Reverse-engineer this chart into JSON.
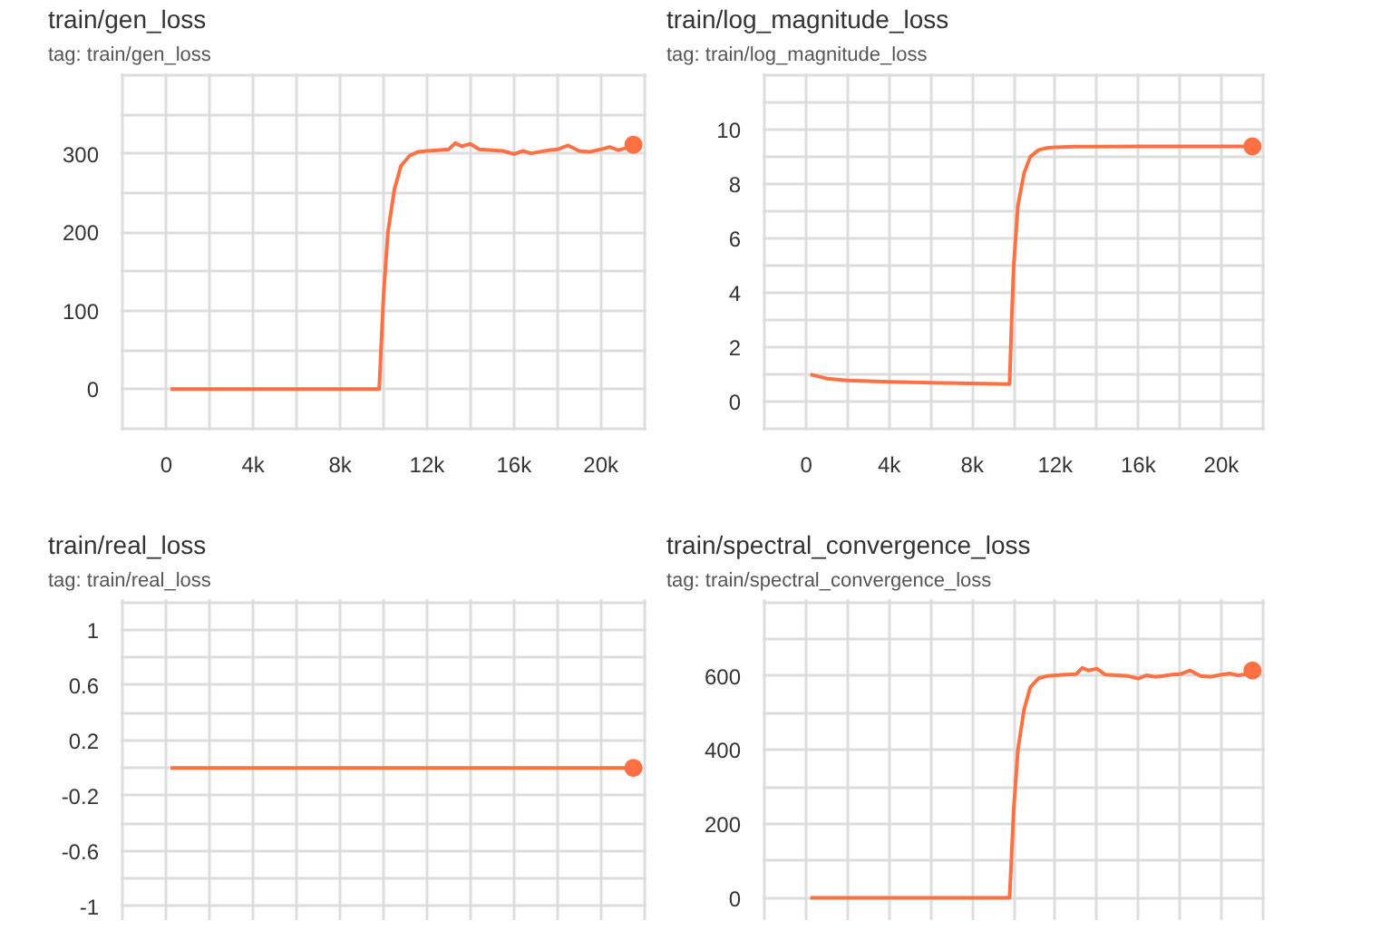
{
  "chart_data": [
    {
      "type": "line",
      "title": "train/gen_loss",
      "subtitle": "tag: train/gen_loss",
      "xlim": [
        -2100,
        22100
      ],
      "xticks": [
        {
          "value": -2000,
          "label": null
        },
        0,
        {
          "value": 2000,
          "label": null
        },
        {
          "value": 4000,
          "label": "4k"
        },
        {
          "value": 6000,
          "label": null
        },
        {
          "value": 8000,
          "label": "8k"
        },
        {
          "value": 10000,
          "label": null
        },
        {
          "value": 12000,
          "label": "12k"
        },
        {
          "value": 14000,
          "label": null
        },
        {
          "value": 16000,
          "label": "16k"
        },
        {
          "value": 18000,
          "label": null
        },
        {
          "value": 20000,
          "label": "20k"
        },
        {
          "value": 22000,
          "label": null
        }
      ],
      "ylim": [
        -53,
        403
      ],
      "yticks": [
        {
          "value": -50,
          "label": null
        },
        0,
        {
          "value": 50,
          "label": null
        },
        100,
        {
          "value": 150,
          "label": null
        },
        200,
        {
          "value": 250,
          "label": null
        },
        300,
        {
          "value": 350,
          "label": null
        },
        {
          "value": 400,
          "label": null
        }
      ],
      "grid": true,
      "series": [
        {
          "color": "#ff7043",
          "x": [
            200,
            2000,
            4000,
            6000,
            8000,
            9800,
            10000,
            10200,
            10500,
            10800,
            11200,
            11600,
            12000,
            12500,
            13000,
            13300,
            13600,
            14000,
            14400,
            15000,
            15500,
            16000,
            16400,
            16800,
            17200,
            17600,
            18000,
            18500,
            19000,
            19500,
            20000,
            20400,
            20800,
            21200,
            21500
          ],
          "values": [
            0,
            0,
            0,
            0,
            0,
            0,
            120,
            200,
            255,
            285,
            298,
            303,
            304,
            305,
            306,
            314,
            310,
            313,
            306,
            305,
            304,
            300,
            304,
            301,
            303,
            305,
            306,
            311,
            304,
            303,
            306,
            309,
            305,
            308,
            312
          ]
        },
        {
          "type": "scatter",
          "color": "#ff7043",
          "x": [
            21500
          ],
          "values": [
            312
          ]
        }
      ]
    },
    {
      "type": "line",
      "title": "train/log_magnitude_loss",
      "subtitle": "tag: train/log_magnitude_loss",
      "xlim": [
        -2100,
        22100
      ],
      "xticks": [
        {
          "value": -2000,
          "label": null
        },
        0,
        {
          "value": 2000,
          "label": null
        },
        {
          "value": 4000,
          "label": "4k"
        },
        {
          "value": 6000,
          "label": null
        },
        {
          "value": 8000,
          "label": "8k"
        },
        {
          "value": 10000,
          "label": null
        },
        {
          "value": 12000,
          "label": "12k"
        },
        {
          "value": 14000,
          "label": null
        },
        {
          "value": 16000,
          "label": "16k"
        },
        {
          "value": 18000,
          "label": null
        },
        {
          "value": 20000,
          "label": "20k"
        },
        {
          "value": 22000,
          "label": null
        }
      ],
      "ylim": [
        -1.06,
        12.06
      ],
      "yticks": [
        {
          "value": -1,
          "label": null
        },
        0,
        {
          "value": 1,
          "label": null
        },
        2,
        {
          "value": 3,
          "label": null
        },
        4,
        {
          "value": 5,
          "label": null
        },
        6,
        {
          "value": 7,
          "label": null
        },
        8,
        {
          "value": 9,
          "label": null
        },
        10,
        {
          "value": 11,
          "label": null
        },
        {
          "value": 12,
          "label": null
        }
      ],
      "grid": true,
      "series": [
        {
          "color": "#ff7043",
          "x": [
            200,
            1000,
            2000,
            4000,
            6000,
            8000,
            9800,
            9900,
            10000,
            10200,
            10500,
            10800,
            11200,
            11600,
            12000,
            13000,
            14000,
            16000,
            18000,
            20000,
            21500
          ],
          "values": [
            1.0,
            0.85,
            0.78,
            0.73,
            0.7,
            0.67,
            0.65,
            3.0,
            5.0,
            7.2,
            8.4,
            9.0,
            9.25,
            9.32,
            9.35,
            9.37,
            9.37,
            9.38,
            9.38,
            9.38,
            9.38
          ]
        },
        {
          "type": "scatter",
          "color": "#ff7043",
          "x": [
            21500
          ],
          "values": [
            9.38
          ]
        }
      ]
    },
    {
      "type": "line",
      "title": "train/real_loss",
      "subtitle": "tag: train/real_loss",
      "tick_labels": "y",
      "xlim": [
        -2100,
        22100
      ],
      "xticks": [
        {
          "value": -2000,
          "label": null
        },
        {
          "value": 0,
          "label": null
        },
        {
          "value": 2000,
          "label": null
        },
        {
          "value": 4000,
          "label": null
        },
        {
          "value": 6000,
          "label": null
        },
        {
          "value": 8000,
          "label": null
        },
        {
          "value": 10000,
          "label": null
        },
        {
          "value": 12000,
          "label": null
        },
        {
          "value": 14000,
          "label": null
        },
        {
          "value": 16000,
          "label": null
        },
        {
          "value": 18000,
          "label": null
        },
        {
          "value": 20000,
          "label": null
        },
        {
          "value": 22000,
          "label": null
        }
      ],
      "ylim": [
        -1.1,
        1.22
      ],
      "yticks": [
        1,
        {
          "value": 0.8,
          "label": null
        },
        0.6,
        {
          "value": 0.4,
          "label": null
        },
        0.2,
        {
          "value": 0,
          "label": null
        },
        -0.2,
        {
          "value": -0.4,
          "label": null
        },
        -0.6,
        {
          "value": -0.8,
          "label": null
        },
        -1,
        {
          "value": 1.2,
          "label": null
        }
      ],
      "grid": true,
      "series": [
        {
          "color": "#ff7043",
          "x": [
            200,
            21500
          ],
          "values": [
            0,
            0
          ]
        },
        {
          "type": "scatter",
          "color": "#ff7043",
          "x": [
            21500
          ],
          "values": [
            0
          ]
        }
      ]
    },
    {
      "type": "line",
      "title": "train/spectral_convergence_loss",
      "subtitle": "tag: train/spectral_convergence_loss",
      "tick_labels": "y",
      "xlim": [
        -2100,
        22100
      ],
      "xticks": [
        {
          "value": -2000,
          "label": null
        },
        {
          "value": 0,
          "label": null
        },
        {
          "value": 2000,
          "label": null
        },
        {
          "value": 4000,
          "label": null
        },
        {
          "value": 6000,
          "label": null
        },
        {
          "value": 8000,
          "label": null
        },
        {
          "value": 10000,
          "label": null
        },
        {
          "value": 12000,
          "label": null
        },
        {
          "value": 14000,
          "label": null
        },
        {
          "value": 16000,
          "label": null
        },
        {
          "value": 18000,
          "label": null
        },
        {
          "value": 20000,
          "label": null
        },
        {
          "value": 22000,
          "label": null
        }
      ],
      "ylim": [
        -60,
        808
      ],
      "yticks": [
        0,
        {
          "value": 100,
          "label": null
        },
        200,
        {
          "value": 300,
          "label": null
        },
        400,
        {
          "value": 500,
          "label": null
        },
        600,
        {
          "value": 700,
          "label": null
        },
        {
          "value": 800,
          "label": null
        }
      ],
      "grid": true,
      "series": [
        {
          "color": "#ff7043",
          "x": [
            200,
            2000,
            4000,
            6000,
            8000,
            9800,
            10000,
            10200,
            10500,
            10800,
            11200,
            11600,
            12000,
            12500,
            13000,
            13300,
            13600,
            14000,
            14400,
            15000,
            15500,
            16000,
            16400,
            16800,
            17200,
            17600,
            18000,
            18500,
            19000,
            19500,
            20000,
            20400,
            20800,
            21200,
            21500
          ],
          "values": [
            0,
            0,
            0,
            0,
            0,
            0,
            240,
            400,
            510,
            570,
            594,
            600,
            602,
            604,
            605,
            622,
            615,
            620,
            604,
            602,
            600,
            593,
            602,
            598,
            600,
            604,
            605,
            615,
            600,
            598,
            604,
            607,
            602,
            605,
            615
          ]
        },
        {
          "type": "scatter",
          "color": "#ff7043",
          "x": [
            21500
          ],
          "values": [
            615
          ]
        }
      ]
    }
  ]
}
